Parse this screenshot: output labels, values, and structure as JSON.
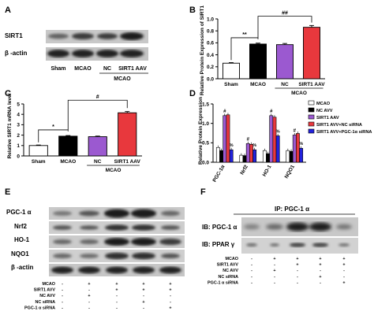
{
  "panels": {
    "A": {
      "letter": "A",
      "bands": [
        "SIRT1",
        "β -actin"
      ],
      "lanes": [
        "Sham",
        "MCAO",
        "NC",
        "SIRT1 AAV"
      ],
      "group": "MCAO"
    },
    "E": {
      "letter": "E",
      "bands": [
        "PGC-1 α",
        "Nrf2",
        "HO-1",
        "NQO1",
        "β -actin"
      ],
      "rows": [
        {
          "label": "MCAO",
          "marks": [
            "-",
            "+",
            "+",
            "+",
            "+"
          ]
        },
        {
          "label": "SIRT1 AVV",
          "marks": [
            "-",
            "-",
            "+",
            "+",
            "+"
          ]
        },
        {
          "label": "NC AVV",
          "marks": [
            "-",
            "+",
            "-",
            "-",
            "-"
          ]
        },
        {
          "label": "NC siRNA",
          "marks": [
            "-",
            "-",
            "-",
            "+",
            "-"
          ]
        },
        {
          "label": "PGC-1 α siRNA",
          "marks": [
            "-",
            "-",
            "-",
            "-",
            "+"
          ]
        }
      ]
    },
    "F": {
      "letter": "F",
      "ip_label": "IP: PGC-1 α",
      "bands": [
        "IB: PGC-1 α",
        "IB: PPAR γ"
      ],
      "rows": [
        {
          "label": "MCAO",
          "marks": [
            "-",
            "+",
            "+",
            "+",
            "+"
          ]
        },
        {
          "label": "SIRT1 AVV",
          "marks": [
            "-",
            "-",
            "+",
            "+",
            "+"
          ]
        },
        {
          "label": "NC AVV",
          "marks": [
            "-",
            "+",
            "-",
            "-",
            "-"
          ]
        },
        {
          "label": "NC siRNA",
          "marks": [
            "-",
            "-",
            "-",
            "+",
            "-"
          ]
        },
        {
          "label": "PGC-1 α siRNA",
          "marks": [
            "-",
            "-",
            "-",
            "-",
            "+"
          ]
        }
      ]
    }
  },
  "chart_data": [
    {
      "id": "B",
      "type": "bar",
      "letter": "B",
      "categories": [
        "Sham",
        "MCAO",
        "NC",
        "SIRT1 AAV"
      ],
      "values": [
        0.26,
        0.58,
        0.57,
        0.86
      ],
      "errors": [
        0.01,
        0.015,
        0.02,
        0.03
      ],
      "colors": [
        "#ffffff",
        "#000000",
        "#9b59d0",
        "#e8383d"
      ],
      "ylabel": "Relative Protein Expression of SIRT1",
      "ylim": [
        0,
        1.0
      ],
      "yticks": [
        "0.0",
        "0.2",
        "0.4",
        "0.6",
        "0.8",
        "1.0"
      ],
      "group_label": "MCAO",
      "sig": [
        "**",
        "##"
      ]
    },
    {
      "id": "C",
      "type": "bar",
      "letter": "C",
      "categories": [
        "Sham",
        "MCAO",
        "NC",
        "SIRT1 AAV"
      ],
      "values": [
        1.0,
        1.9,
        1.85,
        4.15
      ],
      "errors": [
        0.05,
        0.06,
        0.06,
        0.12
      ],
      "colors": [
        "#ffffff",
        "#000000",
        "#9b59d0",
        "#e8383d"
      ],
      "ylabel": "Relative SIRT1 mRNA level",
      "ylim": [
        0,
        5
      ],
      "yticks": [
        "0",
        "1",
        "2",
        "3",
        "4",
        "5"
      ],
      "group_label": "MCAO",
      "sig": [
        "*",
        "#"
      ]
    },
    {
      "id": "D",
      "type": "bar",
      "letter": "D",
      "categories": [
        "PGC-1α",
        "Nrf2",
        "HO-1",
        "NQO1"
      ],
      "series": [
        {
          "name": "MCAO",
          "color": "#ffffff",
          "values": [
            0.38,
            0.18,
            0.3,
            0.3
          ]
        },
        {
          "name": "NC AVV",
          "color": "#000000",
          "values": [
            0.3,
            0.17,
            0.22,
            0.28
          ]
        },
        {
          "name": "SIRT1 AAV",
          "color": "#9b59d0",
          "values": [
            1.2,
            0.48,
            1.2,
            0.7
          ]
        },
        {
          "name": "SIRT1 AVV+NC siRNA",
          "color": "#e8383d",
          "values": [
            1.22,
            0.46,
            1.16,
            0.74
          ]
        },
        {
          "name": "SIRT1 AVV+PGC-1α siRNA",
          "color": "#2222dd",
          "values": [
            0.32,
            0.32,
            0.68,
            0.36
          ]
        }
      ],
      "ylabel": "Relative Protein Expression",
      "ylim": [
        0,
        1.5
      ],
      "yticks": [
        "0.0",
        "0.5",
        "1.0",
        "1.5"
      ],
      "marks": [
        "#",
        "%"
      ]
    }
  ]
}
